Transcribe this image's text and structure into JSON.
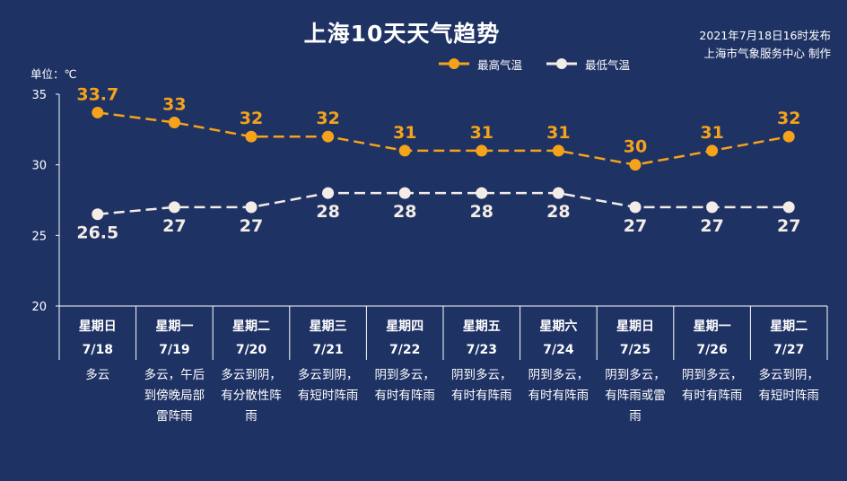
{
  "header": {
    "title": "上海10天天气趋势",
    "publish_line1": "2021年7月18日16时发布",
    "publish_line2": "上海市气象服务中心 制作",
    "unit_label": "单位：℃"
  },
  "legend": {
    "high": "最高气温",
    "low": "最低气温"
  },
  "colors": {
    "background": "#1f3264",
    "high": "#f5a31a",
    "low": "#f4ece6",
    "axis": "#ffffff"
  },
  "chart_data": {
    "type": "line",
    "title": "上海10天天气趋势",
    "ylabel": "单位：℃",
    "ylim": [
      20,
      35
    ],
    "yticks": [
      20,
      25,
      30,
      35
    ],
    "grid": false,
    "legend_position": "top-right",
    "categories": [
      "7/18",
      "7/19",
      "7/20",
      "7/21",
      "7/22",
      "7/23",
      "7/24",
      "7/25",
      "7/26",
      "7/27"
    ],
    "series": [
      {
        "name": "最高气温",
        "values": [
          33.7,
          33,
          32,
          32,
          31,
          31,
          31,
          30,
          31,
          32
        ]
      },
      {
        "name": "最低气温",
        "values": [
          26.5,
          27,
          27,
          28,
          28,
          28,
          28,
          27,
          27,
          27
        ]
      }
    ],
    "days": [
      {
        "weekday": "星期日",
        "date": "7/18",
        "weather": [
          "多云"
        ]
      },
      {
        "weekday": "星期一",
        "date": "7/19",
        "weather": [
          "多云，午后",
          "到傍晚局部",
          "雷阵雨"
        ]
      },
      {
        "weekday": "星期二",
        "date": "7/20",
        "weather": [
          "多云到阴，",
          "有分散性阵",
          "雨"
        ]
      },
      {
        "weekday": "星期三",
        "date": "7/21",
        "weather": [
          "多云到阴，",
          "有短时阵雨"
        ]
      },
      {
        "weekday": "星期四",
        "date": "7/22",
        "weather": [
          "阴到多云，",
          "有时有阵雨"
        ]
      },
      {
        "weekday": "星期五",
        "date": "7/23",
        "weather": [
          "阴到多云，",
          "有时有阵雨"
        ]
      },
      {
        "weekday": "星期六",
        "date": "7/24",
        "weather": [
          "阴到多云，",
          "有时有阵雨"
        ]
      },
      {
        "weekday": "星期日",
        "date": "7/25",
        "weather": [
          "阴到多云，",
          "有阵雨或雷",
          "雨"
        ]
      },
      {
        "weekday": "星期一",
        "date": "7/26",
        "weather": [
          "阴到多云，",
          "有时有阵雨"
        ]
      },
      {
        "weekday": "星期二",
        "date": "7/27",
        "weather": [
          "多云到阴，",
          "有短时阵雨"
        ]
      }
    ]
  }
}
